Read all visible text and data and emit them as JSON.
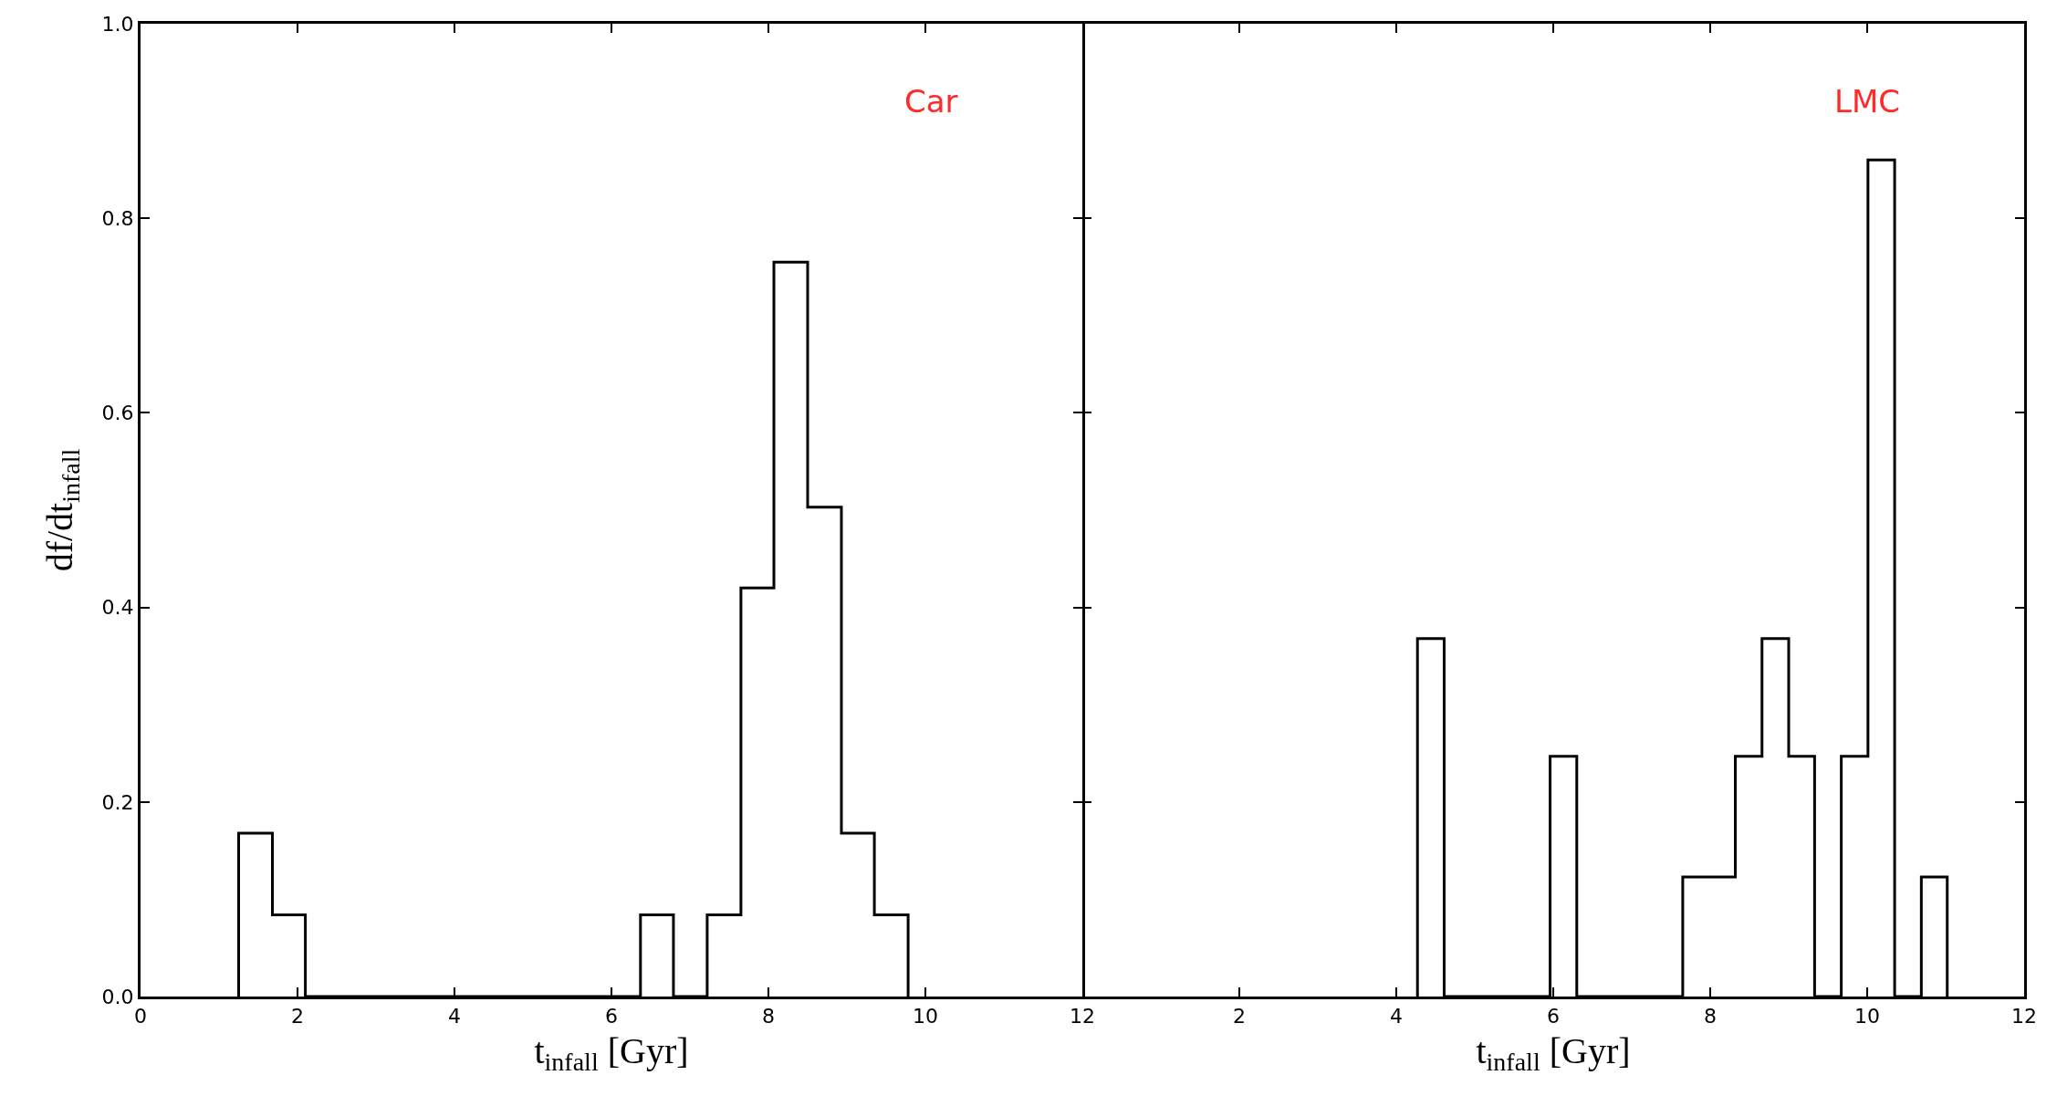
{
  "chart_data": [
    {
      "type": "histogram",
      "xlabel": "t$_{infall}$ [Gyr]",
      "ylabel": "df/dt$_{infall}$",
      "annotations": [
        "Car"
      ],
      "bins": [
        1.25,
        1.68,
        2.1,
        2.53,
        2.96,
        3.38,
        3.81,
        4.24,
        4.66,
        5.09,
        5.52,
        5.94,
        6.37,
        6.79,
        7.22,
        7.65,
        8.07,
        8.5,
        8.93,
        9.35,
        9.78
      ],
      "values": [
        0.168,
        0.084,
        0,
        0,
        0,
        0,
        0,
        0,
        0,
        0,
        0,
        0,
        0.084,
        0,
        0.084,
        0.42,
        0.755,
        0.503,
        0.168,
        0.084
      ],
      "color": "#000000",
      "xlim": [
        0,
        12
      ],
      "xticks": [
        0,
        2,
        4,
        6,
        8,
        10,
        12
      ],
      "ylim": [
        0,
        1
      ],
      "yticks": [
        {
          "value": 0,
          "label": "0.0"
        },
        {
          "value": 0.2,
          "label": "0.2"
        },
        {
          "value": 0.4,
          "label": "0.4"
        },
        {
          "value": 0.6,
          "label": "0.6"
        },
        {
          "value": 0.8,
          "label": "0.8"
        },
        {
          "value": 1,
          "label": "1.0"
        }
      ],
      "grid": false
    },
    {
      "type": "histogram",
      "xlabel": "t$_{infall}$ [Gyr]",
      "annotations": [
        "LMC"
      ],
      "bins": [
        4.27,
        4.61,
        4.95,
        5.28,
        5.62,
        5.96,
        6.3,
        6.63,
        6.97,
        7.31,
        7.65,
        7.98,
        8.32,
        8.66,
        9.0,
        9.33,
        9.67,
        10.01,
        10.35,
        10.69,
        11.02
      ],
      "values": [
        0.368,
        0,
        0,
        0,
        0,
        0.247,
        0,
        0,
        0,
        0,
        0.123,
        0.123,
        0.247,
        0.368,
        0.247,
        0,
        0.247,
        0.86,
        0,
        0.123
      ],
      "color": "#000000",
      "xlim": [
        0,
        12
      ],
      "xticks": [
        {
          "value": 0,
          "label": null
        },
        2,
        4,
        6,
        8,
        10,
        12
      ],
      "ylim": [
        0,
        1
      ],
      "yticks": [
        0,
        0.2,
        0.4,
        0.6,
        0.8,
        1
      ],
      "tick_labels": "x",
      "grid": false
    }
  ]
}
